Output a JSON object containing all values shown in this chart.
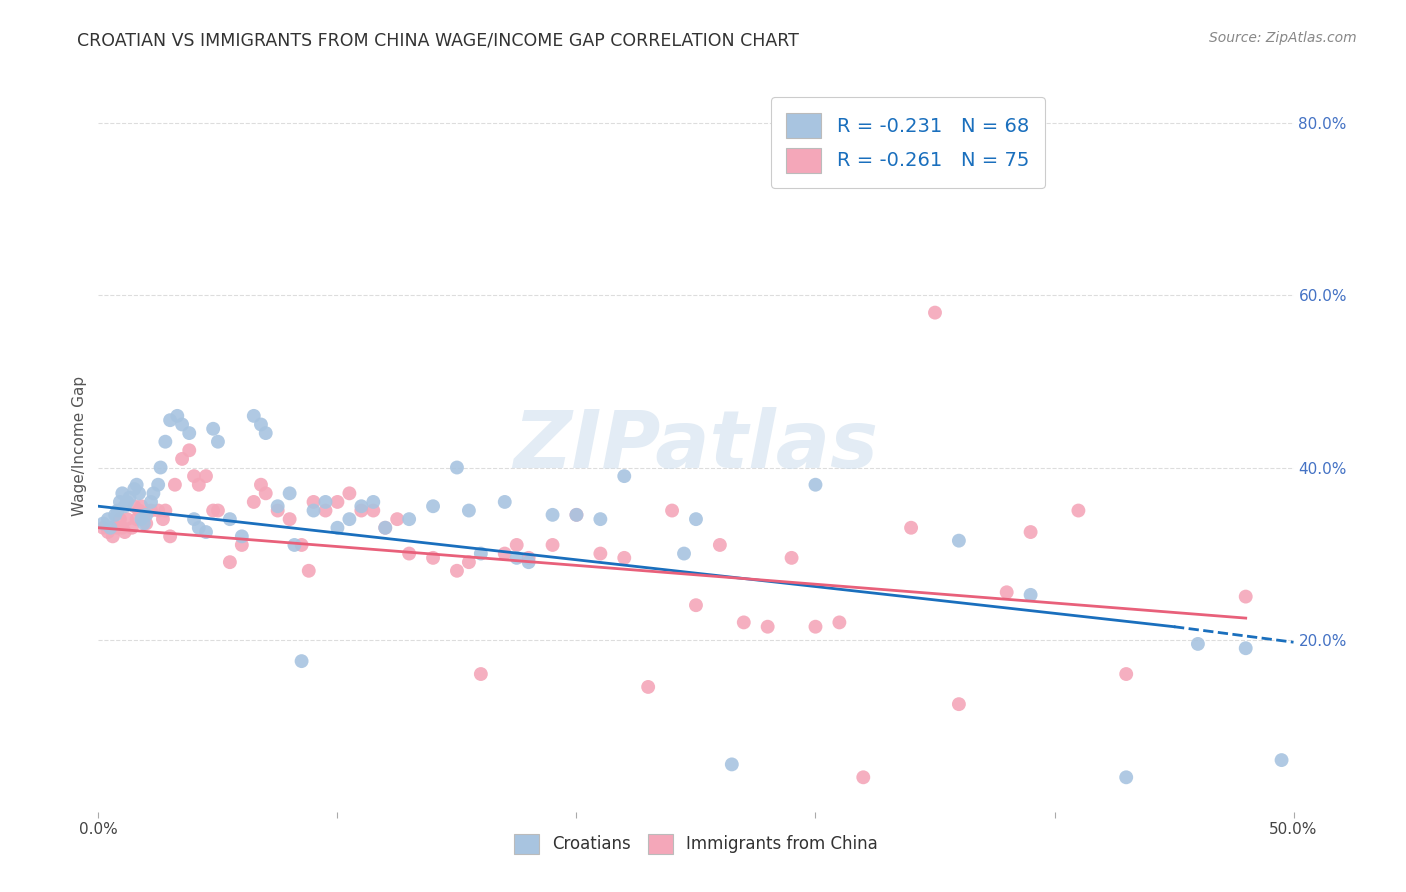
{
  "title": "CROATIAN VS IMMIGRANTS FROM CHINA WAGE/INCOME GAP CORRELATION CHART",
  "source": "Source: ZipAtlas.com",
  "ylabel": "Wage/Income Gap",
  "xlim": [
    0.0,
    0.5
  ],
  "ylim": [
    0.0,
    0.85
  ],
  "croatian_color": "#a8c4e0",
  "china_color": "#f4a7b9",
  "line_croatian_color": "#1a6fbd",
  "line_china_color": "#e8607a",
  "r_croatian": -0.231,
  "n_croatian": 68,
  "r_china": -0.261,
  "n_china": 75,
  "background_color": "#ffffff",
  "grid_color": "#dddddd",
  "watermark": "ZIPatlas",
  "line_cr_x0": 0.0,
  "line_cr_y0": 0.355,
  "line_cr_x1": 0.45,
  "line_cr_y1": 0.215,
  "line_cr_dash_x0": 0.45,
  "line_cr_dash_y0": 0.215,
  "line_cr_dash_x1": 0.5,
  "line_cr_dash_y1": 0.197,
  "line_cn_x0": 0.0,
  "line_cn_y0": 0.33,
  "line_cn_x1": 0.48,
  "line_cn_y1": 0.225,
  "croatians_x": [
    0.002,
    0.004,
    0.005,
    0.007,
    0.008,
    0.009,
    0.01,
    0.011,
    0.012,
    0.013,
    0.015,
    0.016,
    0.017,
    0.018,
    0.019,
    0.02,
    0.022,
    0.023,
    0.025,
    0.026,
    0.028,
    0.03,
    0.033,
    0.035,
    0.038,
    0.04,
    0.042,
    0.045,
    0.048,
    0.05,
    0.055,
    0.06,
    0.065,
    0.068,
    0.07,
    0.075,
    0.08,
    0.082,
    0.085,
    0.09,
    0.095,
    0.1,
    0.105,
    0.11,
    0.115,
    0.12,
    0.13,
    0.14,
    0.15,
    0.155,
    0.16,
    0.17,
    0.175,
    0.18,
    0.19,
    0.2,
    0.21,
    0.22,
    0.245,
    0.25,
    0.265,
    0.3,
    0.36,
    0.39,
    0.43,
    0.46,
    0.48,
    0.495
  ],
  "croatians_y": [
    0.335,
    0.34,
    0.33,
    0.345,
    0.35,
    0.36,
    0.37,
    0.355,
    0.36,
    0.365,
    0.375,
    0.38,
    0.37,
    0.34,
    0.335,
    0.345,
    0.36,
    0.37,
    0.38,
    0.4,
    0.43,
    0.455,
    0.46,
    0.45,
    0.44,
    0.34,
    0.33,
    0.325,
    0.445,
    0.43,
    0.34,
    0.32,
    0.46,
    0.45,
    0.44,
    0.355,
    0.37,
    0.31,
    0.175,
    0.35,
    0.36,
    0.33,
    0.34,
    0.355,
    0.36,
    0.33,
    0.34,
    0.355,
    0.4,
    0.35,
    0.3,
    0.36,
    0.295,
    0.29,
    0.345,
    0.345,
    0.34,
    0.39,
    0.3,
    0.34,
    0.055,
    0.38,
    0.315,
    0.252,
    0.04,
    0.195,
    0.19,
    0.06
  ],
  "china_x": [
    0.002,
    0.004,
    0.006,
    0.008,
    0.009,
    0.01,
    0.011,
    0.012,
    0.014,
    0.015,
    0.016,
    0.017,
    0.018,
    0.019,
    0.02,
    0.022,
    0.025,
    0.027,
    0.028,
    0.03,
    0.032,
    0.035,
    0.038,
    0.04,
    0.042,
    0.045,
    0.048,
    0.05,
    0.055,
    0.06,
    0.065,
    0.068,
    0.07,
    0.075,
    0.08,
    0.085,
    0.088,
    0.09,
    0.095,
    0.1,
    0.105,
    0.11,
    0.115,
    0.12,
    0.125,
    0.13,
    0.14,
    0.15,
    0.155,
    0.16,
    0.17,
    0.175,
    0.18,
    0.19,
    0.2,
    0.21,
    0.22,
    0.23,
    0.24,
    0.25,
    0.26,
    0.27,
    0.28,
    0.29,
    0.3,
    0.31,
    0.32,
    0.34,
    0.35,
    0.36,
    0.38,
    0.39,
    0.41,
    0.43,
    0.48
  ],
  "china_y": [
    0.33,
    0.325,
    0.32,
    0.33,
    0.34,
    0.33,
    0.325,
    0.34,
    0.33,
    0.355,
    0.34,
    0.35,
    0.355,
    0.345,
    0.335,
    0.35,
    0.35,
    0.34,
    0.35,
    0.32,
    0.38,
    0.41,
    0.42,
    0.39,
    0.38,
    0.39,
    0.35,
    0.35,
    0.29,
    0.31,
    0.36,
    0.38,
    0.37,
    0.35,
    0.34,
    0.31,
    0.28,
    0.36,
    0.35,
    0.36,
    0.37,
    0.35,
    0.35,
    0.33,
    0.34,
    0.3,
    0.295,
    0.28,
    0.29,
    0.16,
    0.3,
    0.31,
    0.295,
    0.31,
    0.345,
    0.3,
    0.295,
    0.145,
    0.35,
    0.24,
    0.31,
    0.22,
    0.215,
    0.295,
    0.215,
    0.22,
    0.04,
    0.33,
    0.58,
    0.125,
    0.255,
    0.325,
    0.35,
    0.16,
    0.25
  ]
}
